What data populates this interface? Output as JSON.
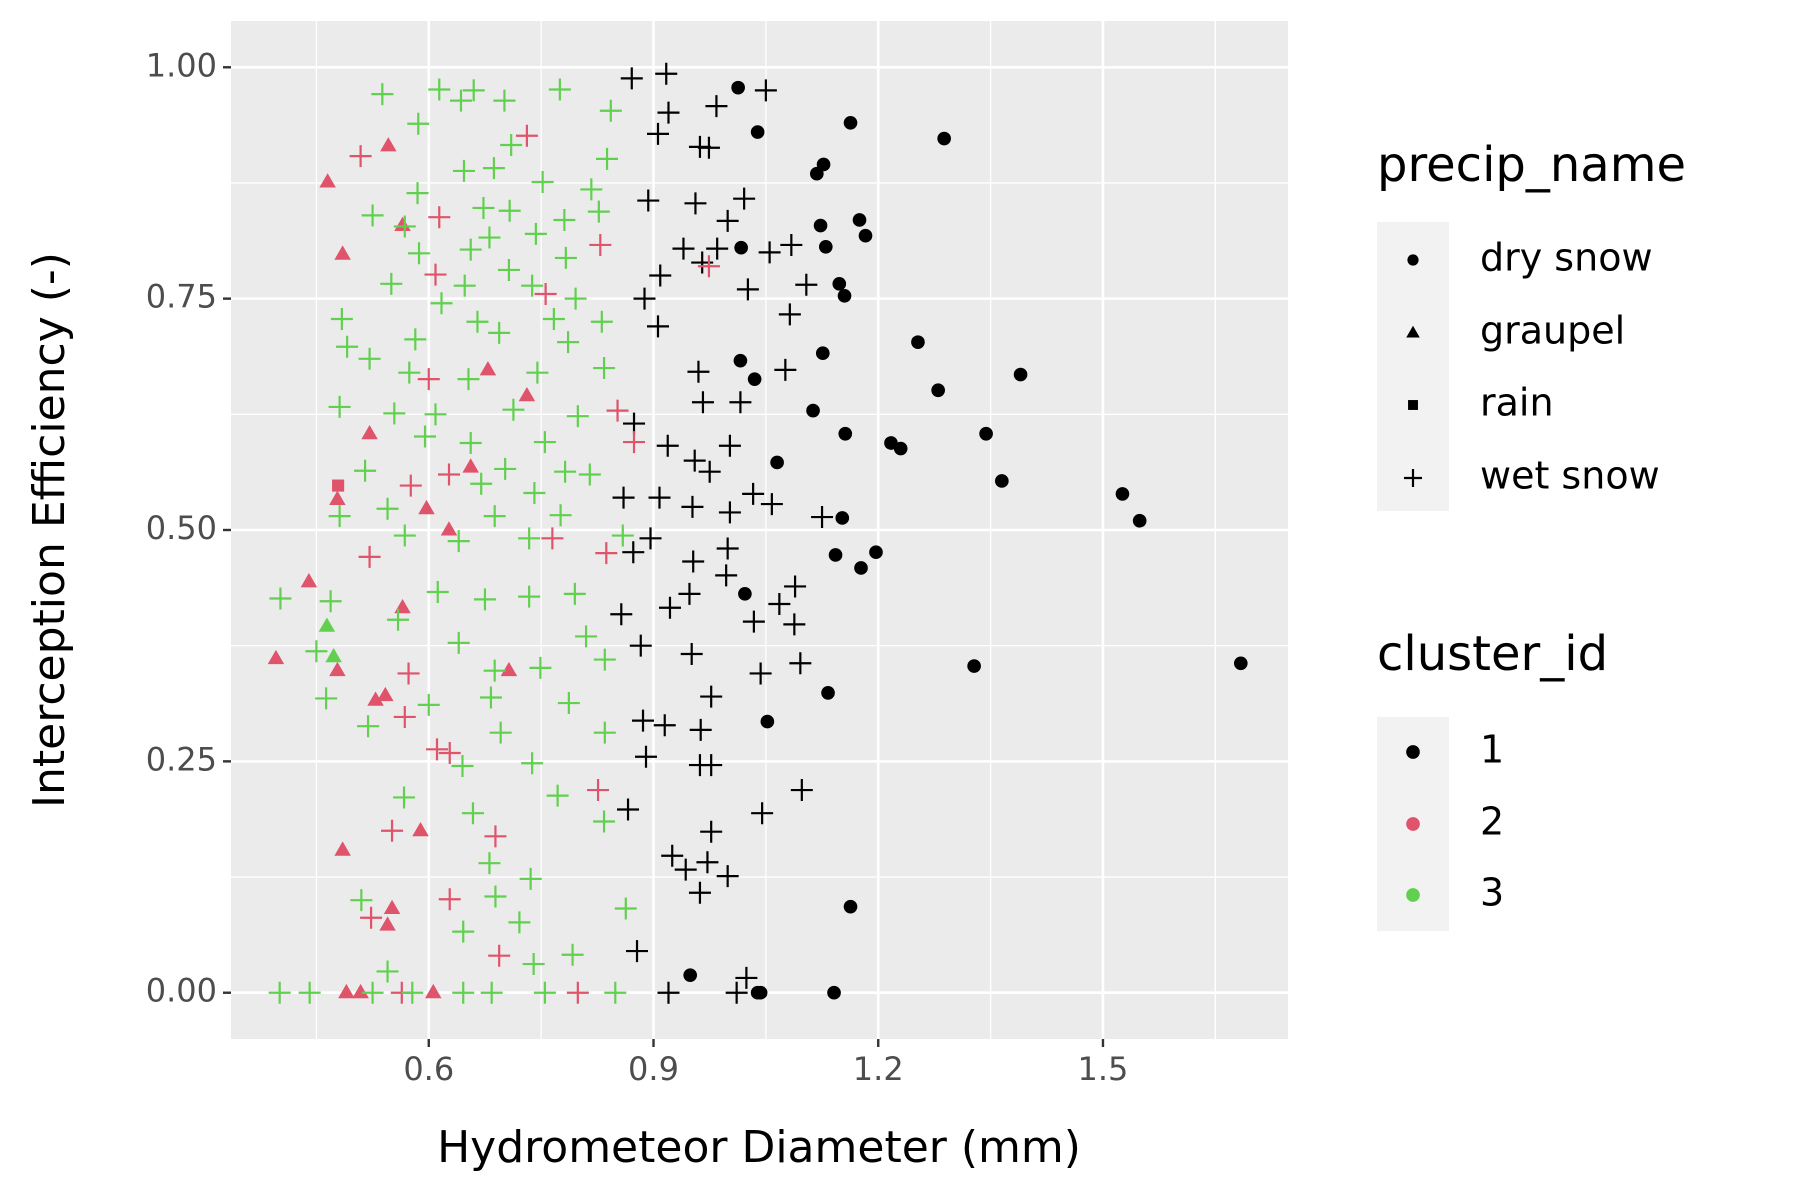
{
  "chart_data": {
    "type": "scatter",
    "x_label": "Hydrometeor Diameter (mm)",
    "y_label": "Interception Efficiency (-)",
    "xlim": [
      0.336,
      1.747
    ],
    "ylim": [
      -0.05,
      1.05
    ],
    "xticks": [
      0.6,
      0.9,
      1.2,
      1.5
    ],
    "yticks": [
      {
        "value": 0,
        "label": "0.00"
      },
      {
        "value": 0.25,
        "label": "0.25"
      },
      {
        "value": 0.5,
        "label": "0.50"
      },
      {
        "value": 0.75,
        "label": "0.75"
      },
      {
        "value": 1,
        "label": "1.00"
      }
    ],
    "grid": true,
    "legends": [
      {
        "title": "precip_name",
        "entries": [
          {
            "label": "dry snow",
            "shape": "circle"
          },
          {
            "label": "graupel",
            "shape": "triangle"
          },
          {
            "label": "rain",
            "shape": "square"
          },
          {
            "label": "wet snow",
            "shape": "plus"
          }
        ]
      },
      {
        "title": "cluster_id",
        "entries": [
          {
            "label": "1",
            "color": "#000000"
          },
          {
            "label": "2",
            "color": "#DF536B"
          },
          {
            "label": "3",
            "color": "#61D04F"
          }
        ]
      }
    ],
    "series": [
      {
        "precip_name": "dry snow",
        "cluster_id": "1",
        "x": [
          1.013,
          1.039,
          1.163,
          1.288,
          1.118,
          1.127,
          1.123,
          1.175,
          1.183,
          1.017,
          1.13,
          1.148,
          1.155,
          1.253,
          1.016,
          1.126,
          1.035,
          1.28,
          1.39,
          1.113,
          1.156,
          1.344,
          1.217,
          1.23,
          1.065,
          1.365,
          1.526,
          1.549,
          1.152,
          1.197,
          1.143,
          1.177,
          1.022,
          1.328,
          1.684,
          1.133,
          1.052,
          1.163,
          0.949,
          1.039,
          1.043,
          1.141
        ],
        "y": [
          0.978,
          0.93,
          0.94,
          0.923,
          0.885,
          0.895,
          0.829,
          0.835,
          0.818,
          0.805,
          0.806,
          0.766,
          0.753,
          0.703,
          0.683,
          0.691,
          0.663,
          0.651,
          0.668,
          0.629,
          0.604,
          0.604,
          0.594,
          0.588,
          0.573,
          0.553,
          0.539,
          0.51,
          0.513,
          0.476,
          0.473,
          0.459,
          0.431,
          0.353,
          0.356,
          0.324,
          0.293,
          0.093,
          0.019,
          0,
          0,
          0
        ]
      },
      {
        "precip_name": "graupel",
        "cluster_id": "2",
        "x": [
          0.465,
          0.546,
          0.485,
          0.565,
          0.679,
          0.731,
          0.521,
          0.656,
          0.478,
          0.597,
          0.627,
          0.44,
          0.565,
          0.396,
          0.478,
          0.529,
          0.542,
          0.707,
          0.589,
          0.485,
          0.551,
          0.545,
          0.49,
          0.509,
          0.606
        ],
        "y": [
          0.876,
          0.915,
          0.798,
          0.829,
          0.673,
          0.645,
          0.604,
          0.568,
          0.533,
          0.523,
          0.5,
          0.444,
          0.416,
          0.361,
          0.348,
          0.316,
          0.321,
          0.348,
          0.175,
          0.154,
          0.091,
          0.073,
          0,
          0,
          0
        ]
      },
      {
        "precip_name": "graupel",
        "cluster_id": "3",
        "x": [
          0.464,
          0.473
        ],
        "y": [
          0.396,
          0.363
        ]
      },
      {
        "precip_name": "rain",
        "cluster_id": "2",
        "x": [
          0.479
        ],
        "y": [
          0.548
        ]
      },
      {
        "precip_name": "wet snow",
        "cluster_id": "1",
        "x": [
          0.871,
          0.917,
          1.05,
          0.92,
          0.984,
          0.906,
          0.962,
          0.974,
          0.893,
          0.956,
          1.021,
          0.999,
          0.94,
          0.985,
          1.055,
          1.084,
          0.909,
          0.965,
          1.026,
          0.888,
          1.104,
          1.082,
          0.906,
          0.96,
          1.076,
          0.966,
          1.016,
          0.874,
          0.919,
          1.002,
          0.955,
          0.975,
          0.908,
          0.86,
          0.952,
          1.033,
          1.058,
          1.125,
          1.002,
          0.873,
          0.896,
          0.953,
          0.999,
          0.997,
          0.948,
          1.089,
          0.857,
          0.922,
          1.034,
          1.068,
          1.088,
          0.883,
          0.951,
          1.043,
          1.096,
          0.977,
          0.886,
          0.915,
          0.963,
          0.89,
          0.962,
          0.977,
          1.098,
          1.045,
          0.866,
          0.977,
          0.925,
          0.972,
          0.943,
          0.999,
          0.962,
          0.878,
          1.024,
          0.92,
          1.011
        ],
        "y": [
          0.988,
          0.993,
          0.975,
          0.951,
          0.958,
          0.928,
          0.914,
          0.913,
          0.856,
          0.853,
          0.858,
          0.834,
          0.804,
          0.804,
          0.8,
          0.808,
          0.775,
          0.789,
          0.76,
          0.75,
          0.765,
          0.733,
          0.72,
          0.671,
          0.673,
          0.638,
          0.638,
          0.615,
          0.591,
          0.591,
          0.575,
          0.563,
          0.535,
          0.535,
          0.525,
          0.539,
          0.528,
          0.514,
          0.519,
          0.476,
          0.491,
          0.466,
          0.48,
          0.451,
          0.431,
          0.439,
          0.409,
          0.416,
          0.401,
          0.42,
          0.398,
          0.375,
          0.366,
          0.345,
          0.356,
          0.32,
          0.294,
          0.289,
          0.284,
          0.255,
          0.246,
          0.246,
          0.219,
          0.194,
          0.198,
          0.174,
          0.148,
          0.141,
          0.133,
          0.126,
          0.108,
          0.045,
          0.016,
          0,
          0
        ]
      },
      {
        "precip_name": "wet snow",
        "cluster_id": "2",
        "x": [
          0.509,
          0.731,
          0.614,
          0.829,
          0.974,
          0.609,
          0.756,
          0.6,
          0.852,
          0.874,
          0.627,
          0.576,
          0.521,
          0.765,
          0.837,
          0.573,
          0.568,
          0.611,
          0.628,
          0.826,
          0.551,
          0.689,
          0.628,
          0.523,
          0.694,
          0.799,
          0.564
        ],
        "y": [
          0.904,
          0.926,
          0.838,
          0.808,
          0.785,
          0.776,
          0.755,
          0.663,
          0.629,
          0.595,
          0.56,
          0.548,
          0.471,
          0.491,
          0.475,
          0.345,
          0.298,
          0.263,
          0.259,
          0.219,
          0.175,
          0.169,
          0.101,
          0.081,
          0.04,
          0,
          0
        ]
      },
      {
        "precip_name": "wet snow",
        "cluster_id": "3",
        "x": [
          0.538,
          0.614,
          0.66,
          0.775,
          0.843,
          0.643,
          0.701,
          0.586,
          0.71,
          0.838,
          0.647,
          0.687,
          0.752,
          0.817,
          0.585,
          0.525,
          0.673,
          0.708,
          0.781,
          0.827,
          0.568,
          0.681,
          0.743,
          0.656,
          0.587,
          0.783,
          0.707,
          0.55,
          0.648,
          0.738,
          0.617,
          0.796,
          0.484,
          0.665,
          0.767,
          0.831,
          0.491,
          0.582,
          0.694,
          0.786,
          0.521,
          0.745,
          0.834,
          0.574,
          0.653,
          0.481,
          0.554,
          0.609,
          0.713,
          0.799,
          0.656,
          0.595,
          0.755,
          0.515,
          0.702,
          0.782,
          0.67,
          0.741,
          0.815,
          0.481,
          0.545,
          0.688,
          0.776,
          0.859,
          0.568,
          0.64,
          0.734,
          0.402,
          0.469,
          0.612,
          0.675,
          0.734,
          0.795,
          0.559,
          0.64,
          0.81,
          0.45,
          0.688,
          0.749,
          0.835,
          0.463,
          0.6,
          0.683,
          0.787,
          0.519,
          0.696,
          0.835,
          0.645,
          0.738,
          0.567,
          0.772,
          0.659,
          0.834,
          0.681,
          0.736,
          0.51,
          0.689,
          0.863,
          0.646,
          0.721,
          0.792,
          0.545,
          0.74,
          0.401,
          0.441,
          0.525,
          0.578,
          0.646,
          0.684,
          0.755,
          0.849
        ],
        "y": [
          0.971,
          0.976,
          0.975,
          0.976,
          0.953,
          0.964,
          0.964,
          0.939,
          0.916,
          0.901,
          0.888,
          0.891,
          0.876,
          0.868,
          0.864,
          0.84,
          0.848,
          0.845,
          0.835,
          0.844,
          0.828,
          0.816,
          0.82,
          0.803,
          0.799,
          0.794,
          0.781,
          0.766,
          0.764,
          0.764,
          0.745,
          0.75,
          0.728,
          0.725,
          0.728,
          0.725,
          0.698,
          0.706,
          0.713,
          0.703,
          0.685,
          0.67,
          0.675,
          0.67,
          0.663,
          0.633,
          0.626,
          0.625,
          0.63,
          0.623,
          0.594,
          0.601,
          0.595,
          0.564,
          0.566,
          0.563,
          0.55,
          0.54,
          0.56,
          0.515,
          0.523,
          0.515,
          0.516,
          0.494,
          0.494,
          0.488,
          0.491,
          0.426,
          0.423,
          0.433,
          0.425,
          0.428,
          0.431,
          0.403,
          0.378,
          0.385,
          0.369,
          0.348,
          0.351,
          0.36,
          0.318,
          0.311,
          0.319,
          0.313,
          0.288,
          0.281,
          0.281,
          0.245,
          0.248,
          0.211,
          0.213,
          0.194,
          0.185,
          0.14,
          0.123,
          0.1,
          0.104,
          0.091,
          0.066,
          0.076,
          0.041,
          0.023,
          0.031,
          0,
          0,
          0,
          0,
          0,
          0,
          0,
          0
        ]
      }
    ]
  }
}
